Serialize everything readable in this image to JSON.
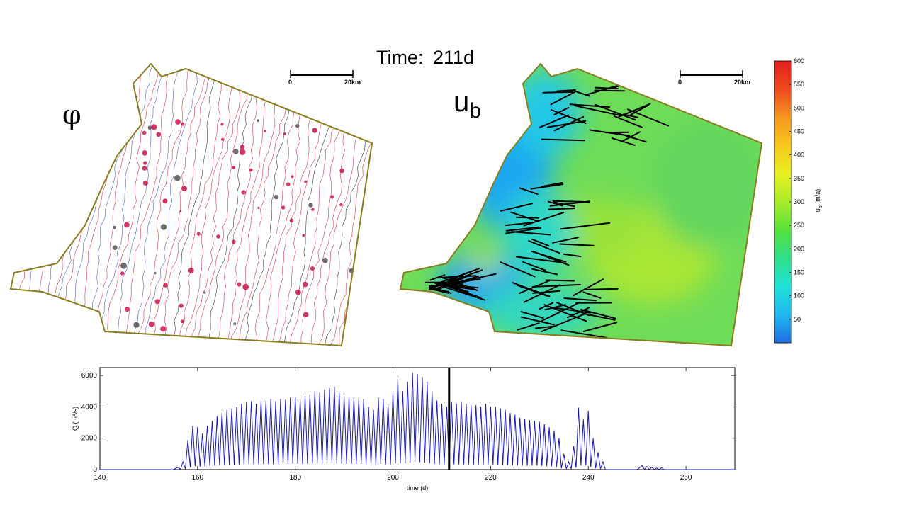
{
  "header": {
    "time_label": "Time:",
    "time_value": "211d"
  },
  "left_map": {
    "symbol": "φ",
    "scalebar": {
      "start": "0",
      "end": "20km"
    },
    "outline_color": "#8a7d1e",
    "contour_colors": [
      "#d21e3c",
      "#3c4bc8",
      "#1e1e1e"
    ]
  },
  "right_map": {
    "symbol": "u",
    "symbol_subscript": "b",
    "scalebar": {
      "start": "0",
      "end": "20km"
    },
    "channel_color": "#000000"
  },
  "colorbar": {
    "label": "u",
    "label_subscript": "b",
    "label_unit": "(m/a)",
    "ticks": [
      600,
      550,
      500,
      450,
      400,
      350,
      300,
      250,
      200,
      150,
      100,
      50
    ],
    "range": [
      0,
      600
    ],
    "colormap": [
      "#1f6fe0",
      "#1fb8f0",
      "#20e3d8",
      "#2fe08a",
      "#56e23a",
      "#a8ec28",
      "#e8f020",
      "#f7c81c",
      "#f6961e",
      "#f04a1e",
      "#e3201e"
    ]
  },
  "chart_data": {
    "type": "line",
    "xlabel": "time (d)",
    "ylabel": "Q (m^3/s)",
    "ylabel_parts": [
      "Q (m",
      "3",
      "/s)"
    ],
    "xlim": [
      140,
      270
    ],
    "ylim": [
      0,
      6500
    ],
    "xticks": [
      140,
      160,
      180,
      200,
      220,
      240,
      260
    ],
    "yticks": [
      0,
      2000,
      4000,
      6000
    ],
    "current_time": 211.5,
    "line_color": "#1a1ab4",
    "series": [
      {
        "x": [
          140,
          155,
          156,
          157,
          158,
          159,
          160,
          161,
          162,
          163,
          164,
          165,
          166,
          167,
          168,
          169,
          170,
          171,
          172,
          173,
          174,
          175,
          176,
          177,
          178,
          179,
          180,
          181,
          182,
          183,
          184,
          185,
          186,
          187,
          188,
          189,
          190,
          191,
          192,
          193,
          194,
          195,
          196,
          197,
          198,
          199,
          200,
          201,
          202,
          203,
          204,
          205,
          206,
          207,
          208,
          209,
          210,
          211,
          212,
          213,
          214,
          215,
          216,
          217,
          218,
          219,
          220,
          221,
          222,
          223,
          224,
          225,
          226,
          227,
          228,
          229,
          230,
          231,
          232,
          233,
          234,
          235,
          236,
          237,
          238,
          239,
          240,
          241,
          242,
          243,
          244,
          250,
          251,
          252,
          253,
          254,
          255,
          256,
          270
        ],
        "y": [
          0,
          0,
          150,
          500,
          1900,
          2800,
          2700,
          2300,
          2800,
          3100,
          3400,
          3650,
          3800,
          3900,
          4000,
          4200,
          4300,
          4350,
          4200,
          4400,
          4400,
          4500,
          4350,
          4500,
          4450,
          4600,
          4600,
          4500,
          4700,
          4800,
          5000,
          4900,
          5100,
          5200,
          5300,
          4900,
          4700,
          4650,
          4600,
          4550,
          4500,
          4000,
          3800,
          4600,
          4500,
          4200,
          4900,
          5800,
          5000,
          5600,
          6200,
          6100,
          5900,
          5600,
          5000,
          4400,
          4200,
          4000,
          4300,
          4200,
          4300,
          4200,
          4100,
          4100,
          4000,
          4200,
          4000,
          4000,
          3900,
          3800,
          3600,
          3500,
          3300,
          3200,
          3150,
          3100,
          3050,
          2900,
          2700,
          2500,
          2000,
          1000,
          500,
          1500,
          3950,
          3200,
          3750,
          2000,
          1100,
          500,
          0,
          0,
          250,
          200,
          150,
          100,
          120,
          0,
          0
        ]
      }
    ]
  }
}
